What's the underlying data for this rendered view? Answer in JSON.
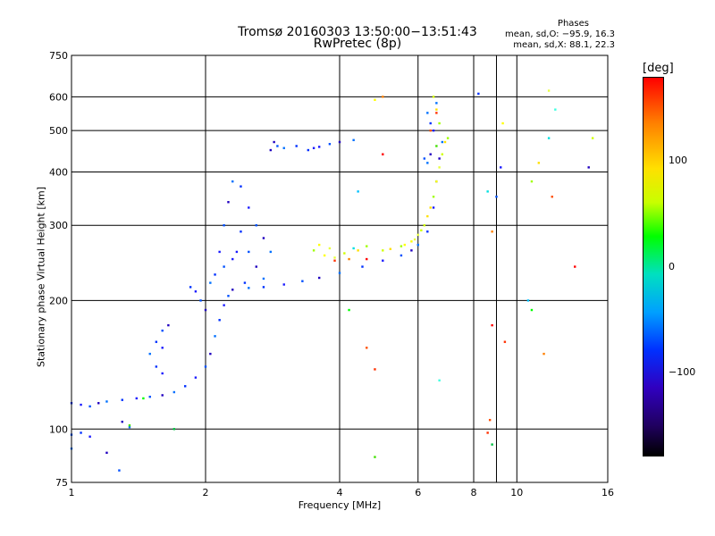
{
  "header": {
    "title_line1": "Tromsø 20160303 13:50:00−13:51:43",
    "title_line2": "RwPretec (8p)",
    "stats_title": "Phases",
    "stats_o": "mean, sd,O: −95.9, 16.3",
    "stats_x": "mean, sd,X: 88.1, 22.3"
  },
  "colorbar": {
    "unit": "[deg]",
    "ticks": [
      "100",
      "0",
      "−100"
    ],
    "tick_values": [
      100,
      0,
      -100
    ],
    "range": [
      -180,
      180
    ],
    "colors": [
      "#000000",
      "#200060",
      "#0030ff",
      "#00a0ff",
      "#00ff00",
      "#ffe000",
      "#ff8000",
      "#ff0000"
    ]
  },
  "chart_data": {
    "type": "scatter",
    "xlabel": "Frequency [MHz]",
    "ylabel": "Stationary phase Virtual Height [km]",
    "xscale": "log",
    "yscale": "log",
    "xlim": [
      1,
      16
    ],
    "ylim": [
      75,
      750
    ],
    "xticks": [
      1,
      2,
      4,
      6,
      8,
      10,
      16
    ],
    "xtick_labels": [
      "1",
      "2",
      "4",
      "6",
      "8",
      "10",
      "16"
    ],
    "yticks": [
      75,
      100,
      200,
      300,
      400,
      500,
      600,
      750
    ],
    "ytick_labels": [
      "75",
      "100",
      "200",
      "300",
      "400",
      "500",
      "600",
      "750"
    ],
    "grid": true,
    "series": [
      {
        "color_hint": "blue",
        "points": [
          [
            1.0,
            115
          ],
          [
            1.05,
            114
          ],
          [
            1.1,
            113
          ],
          [
            1.15,
            115
          ],
          [
            1.2,
            116
          ],
          [
            1.3,
            117
          ],
          [
            1.4,
            118
          ],
          [
            1.5,
            119
          ],
          [
            1.6,
            120
          ],
          [
            1.7,
            122
          ],
          [
            1.8,
            126
          ],
          [
            1.9,
            132
          ],
          [
            2.0,
            140
          ],
          [
            2.05,
            150
          ],
          [
            2.1,
            165
          ],
          [
            2.15,
            180
          ],
          [
            2.2,
            195
          ],
          [
            2.25,
            205
          ],
          [
            2.3,
            212
          ],
          [
            2.5,
            214
          ],
          [
            2.7,
            215
          ],
          [
            3.0,
            218
          ],
          [
            3.3,
            222
          ],
          [
            3.6,
            226
          ],
          [
            4.0,
            232
          ],
          [
            4.5,
            240
          ],
          [
            5.0,
            248
          ],
          [
            5.5,
            255
          ],
          [
            5.8,
            262
          ],
          [
            6.0,
            270
          ],
          [
            6.3,
            290
          ],
          [
            6.5,
            330
          ],
          [
            6.6,
            380
          ],
          [
            6.7,
            430
          ],
          [
            6.8,
            470
          ],
          [
            1.05,
            98
          ],
          [
            1.1,
            96
          ],
          [
            1.0,
            97
          ],
          [
            1.3,
            104
          ],
          [
            1.35,
            101
          ],
          [
            1.85,
            215
          ],
          [
            1.9,
            210
          ],
          [
            1.95,
            200
          ],
          [
            2.0,
            190
          ],
          [
            2.05,
            220
          ],
          [
            2.1,
            230
          ],
          [
            2.15,
            260
          ],
          [
            2.2,
            300
          ],
          [
            2.25,
            340
          ],
          [
            2.3,
            380
          ],
          [
            2.4,
            370
          ],
          [
            2.5,
            330
          ],
          [
            2.6,
            300
          ],
          [
            2.7,
            280
          ],
          [
            2.8,
            260
          ],
          [
            2.4,
            290
          ],
          [
            2.3,
            250
          ],
          [
            2.2,
            240
          ],
          [
            2.6,
            240
          ],
          [
            2.7,
            225
          ],
          [
            2.45,
            220
          ],
          [
            2.35,
            260
          ],
          [
            2.5,
            260
          ],
          [
            2.8,
            450
          ],
          [
            3.0,
            455
          ],
          [
            3.2,
            460
          ],
          [
            3.5,
            455
          ],
          [
            3.8,
            465
          ],
          [
            4.0,
            470
          ],
          [
            4.3,
            475
          ],
          [
            3.4,
            450
          ],
          [
            3.6,
            458
          ],
          [
            2.9,
            460
          ],
          [
            2.85,
            470
          ],
          [
            6.3,
            550
          ],
          [
            6.4,
            520
          ],
          [
            6.5,
            500
          ],
          [
            6.2,
            430
          ],
          [
            6.4,
            440
          ],
          [
            6.6,
            580
          ],
          [
            1.55,
            160
          ],
          [
            1.6,
            155
          ],
          [
            1.6,
            170
          ],
          [
            1.65,
            175
          ],
          [
            1.5,
            150
          ],
          [
            1.55,
            140
          ],
          [
            1.6,
            135
          ],
          [
            1.28,
            80
          ],
          [
            1.2,
            88
          ],
          [
            1.0,
            90
          ],
          [
            8.2,
            610
          ],
          [
            9.2,
            410
          ],
          [
            9.0,
            350
          ],
          [
            14.5,
            410
          ],
          [
            6.3,
            420
          ]
        ]
      },
      {
        "color_hint": "yellow-green",
        "points": [
          [
            5.0,
            262
          ],
          [
            5.2,
            264
          ],
          [
            5.5,
            268
          ],
          [
            5.8,
            275
          ],
          [
            6.0,
            285
          ],
          [
            6.2,
            300
          ],
          [
            6.4,
            330
          ],
          [
            6.5,
            350
          ],
          [
            6.6,
            380
          ],
          [
            6.7,
            410
          ],
          [
            6.8,
            440
          ],
          [
            6.9,
            470
          ],
          [
            7.0,
            480
          ],
          [
            5.6,
            270
          ],
          [
            5.9,
            278
          ],
          [
            6.1,
            292
          ],
          [
            6.3,
            315
          ],
          [
            3.5,
            262
          ],
          [
            3.7,
            255
          ],
          [
            3.9,
            252
          ],
          [
            4.1,
            258
          ],
          [
            4.4,
            262
          ],
          [
            4.6,
            268
          ],
          [
            3.6,
            270
          ],
          [
            3.8,
            265
          ],
          [
            6.5,
            600
          ],
          [
            6.6,
            560
          ],
          [
            6.7,
            520
          ],
          [
            4.8,
            590
          ],
          [
            11.8,
            620
          ],
          [
            14.8,
            480
          ],
          [
            11.2,
            420
          ],
          [
            10.8,
            380
          ],
          [
            9.3,
            520
          ]
        ]
      },
      {
        "color_hint": "red-orange",
        "points": [
          [
            3.9,
            248
          ],
          [
            4.2,
            250
          ],
          [
            4.6,
            250
          ],
          [
            6.4,
            500
          ],
          [
            6.6,
            550
          ],
          [
            5.0,
            600
          ],
          [
            5.0,
            440
          ],
          [
            4.6,
            155
          ],
          [
            4.8,
            138
          ],
          [
            8.8,
            290
          ],
          [
            8.8,
            175
          ],
          [
            8.7,
            105
          ],
          [
            8.6,
            98
          ],
          [
            11.5,
            150
          ],
          [
            13.5,
            240
          ],
          [
            12.0,
            350
          ],
          [
            9.4,
            160
          ]
        ]
      },
      {
        "color_hint": "cyan",
        "points": [
          [
            4.3,
            265
          ],
          [
            4.4,
            360
          ],
          [
            6.7,
            130
          ],
          [
            8.6,
            360
          ],
          [
            10.6,
            200
          ],
          [
            12.2,
            560
          ],
          [
            11.8,
            480
          ]
        ]
      },
      {
        "color_hint": "green",
        "points": [
          [
            1.45,
            118
          ],
          [
            1.35,
            102
          ],
          [
            1.7,
            100
          ],
          [
            4.2,
            190
          ],
          [
            4.8,
            86
          ],
          [
            8.8,
            92
          ],
          [
            10.8,
            190
          ],
          [
            6.6,
            460
          ]
        ]
      }
    ]
  }
}
